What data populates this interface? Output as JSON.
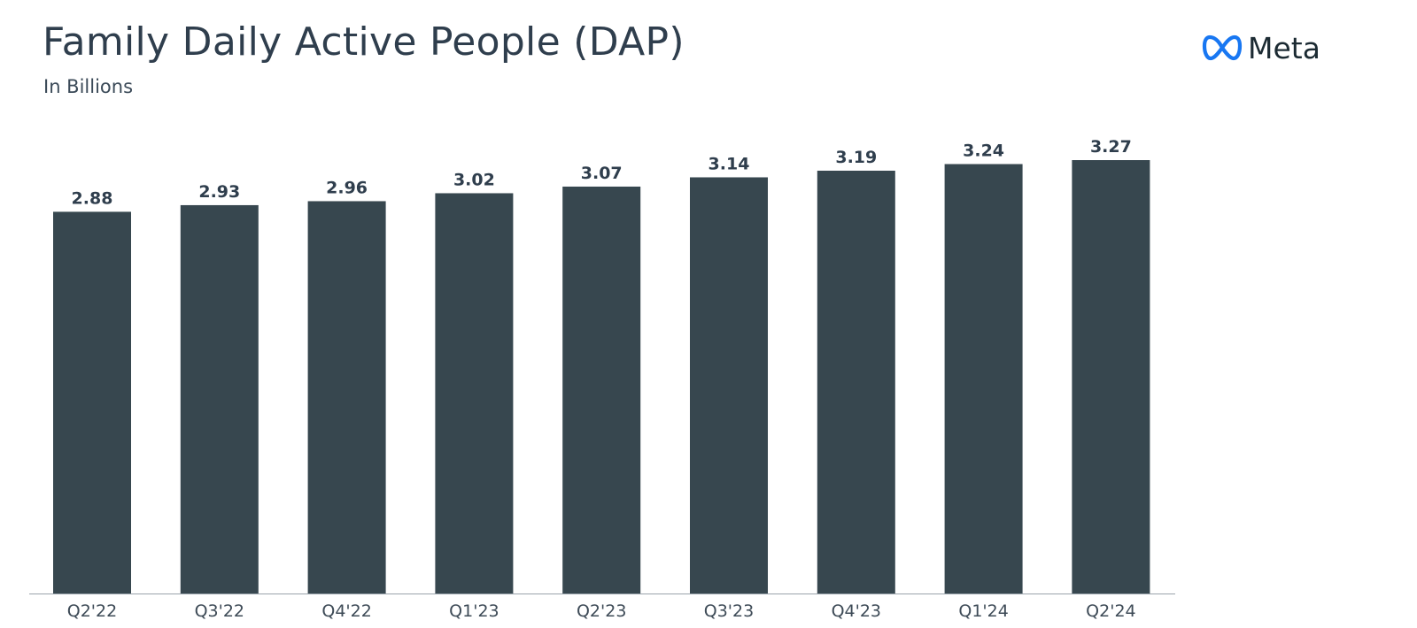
{
  "header": {
    "title": "Family Daily Active People (DAP)",
    "subtitle": "In Billions"
  },
  "brand": {
    "logo_text": "Meta",
    "logo_icon": "meta-infinity-logo",
    "logo_color": "#1877f2",
    "text_color": "#1c2b33"
  },
  "colors": {
    "bar": "#37474f",
    "axis": "#9aa3ab",
    "label": "#2f3e4d"
  },
  "chart_data": {
    "type": "bar",
    "title": "Family Daily Active People (DAP)",
    "subtitle": "In Billions",
    "xlabel": "",
    "ylabel": "",
    "categories": [
      "Q2'22",
      "Q3'22",
      "Q4'22",
      "Q1'23",
      "Q2'23",
      "Q3'23",
      "Q4'23",
      "Q1'24",
      "Q2'24"
    ],
    "values": [
      2.88,
      2.93,
      2.96,
      3.02,
      3.07,
      3.14,
      3.19,
      3.24,
      3.27
    ],
    "value_labels": [
      "2.88",
      "2.93",
      "2.96",
      "3.02",
      "3.07",
      "3.14",
      "3.19",
      "3.24",
      "3.27"
    ],
    "ylim": [
      0,
      3.27
    ],
    "grid": false,
    "legend": "none"
  }
}
